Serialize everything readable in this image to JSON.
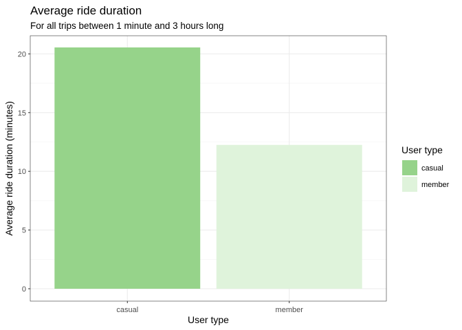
{
  "chart_data": {
    "type": "bar",
    "title": "Average ride duration",
    "subtitle": "For all trips between 1 minute and 3 hours long",
    "xlabel": "User type",
    "ylabel": "Average ride duration (minutes)",
    "categories": [
      "casual",
      "member"
    ],
    "values": [
      20.55,
      12.25
    ],
    "colors": [
      "#96d38a",
      "#dff3db"
    ],
    "ylim": [
      0,
      21.6
    ],
    "yticks": [
      0,
      5,
      10,
      15,
      20
    ],
    "grid": true,
    "legend": {
      "title": "User type",
      "placement": "right",
      "entries": [
        "casual",
        "member"
      ]
    }
  }
}
